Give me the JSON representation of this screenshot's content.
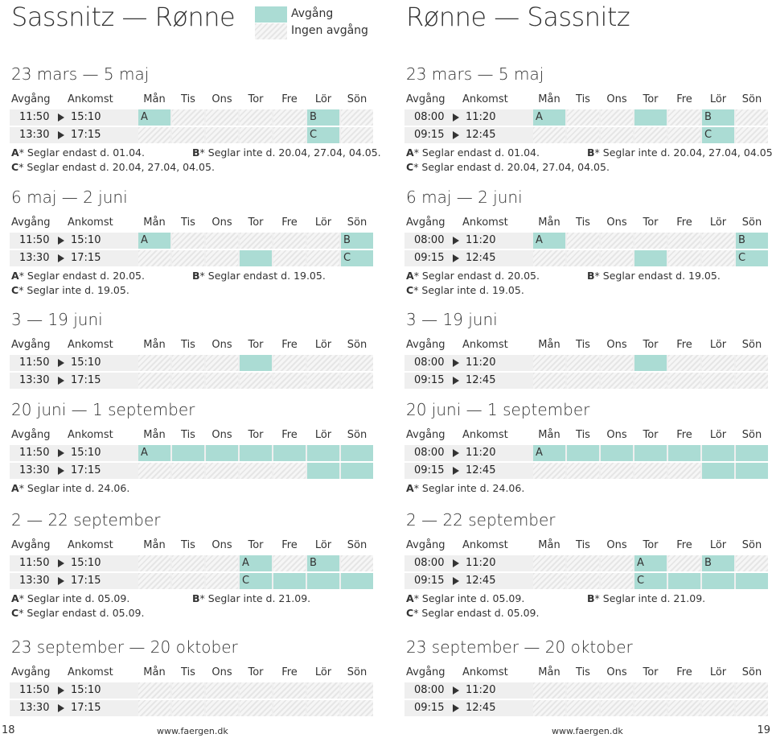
{
  "legend": {
    "departure": "Avgång",
    "no_departure": "Ingen avgång"
  },
  "header": {
    "avg": "Avgång",
    "ank": "Ankomst",
    "days": [
      "Mån",
      "Tis",
      "Ons",
      "Tor",
      "Fre",
      "Lör",
      "Sön"
    ]
  },
  "columns": [
    {
      "title": "Sassnitz — Rønne",
      "page": "18",
      "url": "www.faergen.dk",
      "sections": [
        {
          "title": "23 mars — 5 maj",
          "rows": [
            {
              "dep": "11:50",
              "arr": "15:10",
              "days": [
                "A",
                "-",
                "-",
                "-",
                "-",
                "B",
                "-"
              ]
            },
            {
              "dep": "13:30",
              "arr": "17:15",
              "days": [
                "-",
                "-",
                "-",
                "-",
                "-",
                "C",
                "-"
              ]
            }
          ],
          "notes": [
            [
              {
                "k": "A",
                "t": "* Seglar endast d. 01.04."
              },
              {
                "k": "B",
                "t": "* Seglar inte d. 20.04, 27.04, 04.05."
              }
            ],
            [
              {
                "k": "C",
                "t": "* Seglar endast d. 20.04, 27.04, 04.05."
              }
            ]
          ]
        },
        {
          "title": "6 maj — 2 juni",
          "rows": [
            {
              "dep": "11:50",
              "arr": "15:10",
              "days": [
                "A",
                "-",
                "-",
                "-",
                "-",
                "-",
                "B"
              ]
            },
            {
              "dep": "13:30",
              "arr": "17:15",
              "days": [
                "-",
                "-",
                "-",
                "",
                "-",
                "-",
                "C"
              ]
            }
          ],
          "notes": [
            [
              {
                "k": "A",
                "t": "* Seglar endast d. 20.05."
              },
              {
                "k": "B",
                "t": "* Seglar endast d. 19.05."
              }
            ],
            [
              {
                "k": "C",
                "t": "* Seglar inte d. 19.05."
              }
            ]
          ]
        },
        {
          "title": "3 — 19 juni",
          "rows": [
            {
              "dep": "11:50",
              "arr": "15:10",
              "days": [
                "-",
                "-",
                "-",
                "",
                "-",
                "-",
                "-"
              ]
            },
            {
              "dep": "13:30",
              "arr": "17:15",
              "days": [
                "-",
                "-",
                "-",
                "-",
                "-",
                "-",
                "-"
              ]
            }
          ],
          "notes": []
        },
        {
          "title": "20 juni — 1 september",
          "rows": [
            {
              "dep": "11:50",
              "arr": "15:10",
              "days": [
                "A",
                "",
                "",
                "",
                "",
                "",
                ""
              ]
            },
            {
              "dep": "13:30",
              "arr": "17:15",
              "days": [
                "-",
                "-",
                "-",
                "-",
                "-",
                "",
                ""
              ]
            }
          ],
          "notes": [
            [
              {
                "k": "A",
                "t": "* Seglar inte d. 24.06."
              }
            ]
          ]
        },
        {
          "title": "2 — 22 september",
          "rows": [
            {
              "dep": "11:50",
              "arr": "15:10",
              "days": [
                "-",
                "-",
                "-",
                "A",
                "-",
                "B",
                "-"
              ]
            },
            {
              "dep": "13:30",
              "arr": "17:15",
              "days": [
                "-",
                "-",
                "-",
                "C",
                "",
                "",
                ""
              ]
            }
          ],
          "notes": [
            [
              {
                "k": "A",
                "t": "* Seglar inte d. 05.09."
              },
              {
                "k": "B",
                "t": "* Seglar inte d. 21.09."
              }
            ],
            [
              {
                "k": "C",
                "t": "* Seglar endast d. 05.09."
              }
            ]
          ]
        },
        {
          "title": "23 september — 20 oktober",
          "rows": [
            {
              "dep": "11:50",
              "arr": "15:10",
              "days": [
                "-",
                "-",
                "-",
                "-",
                "-",
                "-",
                "-"
              ]
            },
            {
              "dep": "13:30",
              "arr": "17:15",
              "days": [
                "-",
                "-",
                "-",
                "-",
                "-",
                "-",
                "-"
              ]
            }
          ],
          "notes": []
        }
      ]
    },
    {
      "title": "Rønne — Sassnitz",
      "page": "19",
      "url": "www.faergen.dk",
      "sections": [
        {
          "title": "23 mars — 5 maj",
          "rows": [
            {
              "dep": "08:00",
              "arr": "11:20",
              "days": [
                "A",
                "-",
                "-",
                "",
                "-",
                "B",
                "-"
              ]
            },
            {
              "dep": "09:15",
              "arr": "12:45",
              "days": [
                "-",
                "-",
                "-",
                "-",
                "-",
                "C",
                "-"
              ]
            }
          ],
          "notes": [
            [
              {
                "k": "A",
                "t": "* Seglar endast d. 01.04."
              },
              {
                "k": "B",
                "t": "* Seglar inte d. 20.04, 27.04, 04.05."
              }
            ],
            [
              {
                "k": "C",
                "t": "* Seglar endast d. 20.04, 27.04, 04.05."
              }
            ]
          ]
        },
        {
          "title": "6 maj — 2 juni",
          "rows": [
            {
              "dep": "08:00",
              "arr": "11:20",
              "days": [
                "A",
                "-",
                "-",
                "-",
                "-",
                "-",
                "B"
              ]
            },
            {
              "dep": "09:15",
              "arr": "12:45",
              "days": [
                "-",
                "-",
                "-",
                "",
                "-",
                "-",
                "C"
              ]
            }
          ],
          "notes": [
            [
              {
                "k": "A",
                "t": "* Seglar endast d. 20.05."
              },
              {
                "k": "B",
                "t": "* Seglar endast d. 19.05."
              }
            ],
            [
              {
                "k": "C",
                "t": "* Seglar inte d. 19.05."
              }
            ]
          ]
        },
        {
          "title": "3 — 19 juni",
          "rows": [
            {
              "dep": "08:00",
              "arr": "11:20",
              "days": [
                "-",
                "-",
                "-",
                "",
                "-",
                "-",
                "-"
              ]
            },
            {
              "dep": "09:15",
              "arr": "12:45",
              "days": [
                "-",
                "-",
                "-",
                "-",
                "-",
                "-",
                "-"
              ]
            }
          ],
          "notes": []
        },
        {
          "title": "20 juni — 1 september",
          "rows": [
            {
              "dep": "08:00",
              "arr": "11:20",
              "days": [
                "A",
                "",
                "",
                "",
                "",
                "",
                ""
              ]
            },
            {
              "dep": "09:15",
              "arr": "12:45",
              "days": [
                "-",
                "-",
                "-",
                "-",
                "-",
                "",
                ""
              ]
            }
          ],
          "notes": [
            [
              {
                "k": "A",
                "t": "* Seglar inte d. 24.06."
              }
            ]
          ]
        },
        {
          "title": "2 — 22 september",
          "rows": [
            {
              "dep": "08:00",
              "arr": "11:20",
              "days": [
                "-",
                "-",
                "-",
                "A",
                "-",
                "B",
                "-"
              ]
            },
            {
              "dep": "09:15",
              "arr": "12:45",
              "days": [
                "-",
                "-",
                "-",
                "C",
                "",
                "",
                ""
              ]
            }
          ],
          "notes": [
            [
              {
                "k": "A",
                "t": "* Seglar inte d. 05.09."
              },
              {
                "k": "B",
                "t": "* Seglar inte d. 21.09."
              }
            ],
            [
              {
                "k": "C",
                "t": "* Seglar endast d. 05.09."
              }
            ]
          ]
        },
        {
          "title": "23 september — 20 oktober",
          "rows": [
            {
              "dep": "08:00",
              "arr": "11:20",
              "days": [
                "-",
                "-",
                "-",
                "-",
                "-",
                "-",
                "-"
              ]
            },
            {
              "dep": "09:15",
              "arr": "12:45",
              "days": [
                "-",
                "-",
                "-",
                "-",
                "-",
                "-",
                "-"
              ]
            }
          ],
          "notes": []
        }
      ]
    }
  ]
}
